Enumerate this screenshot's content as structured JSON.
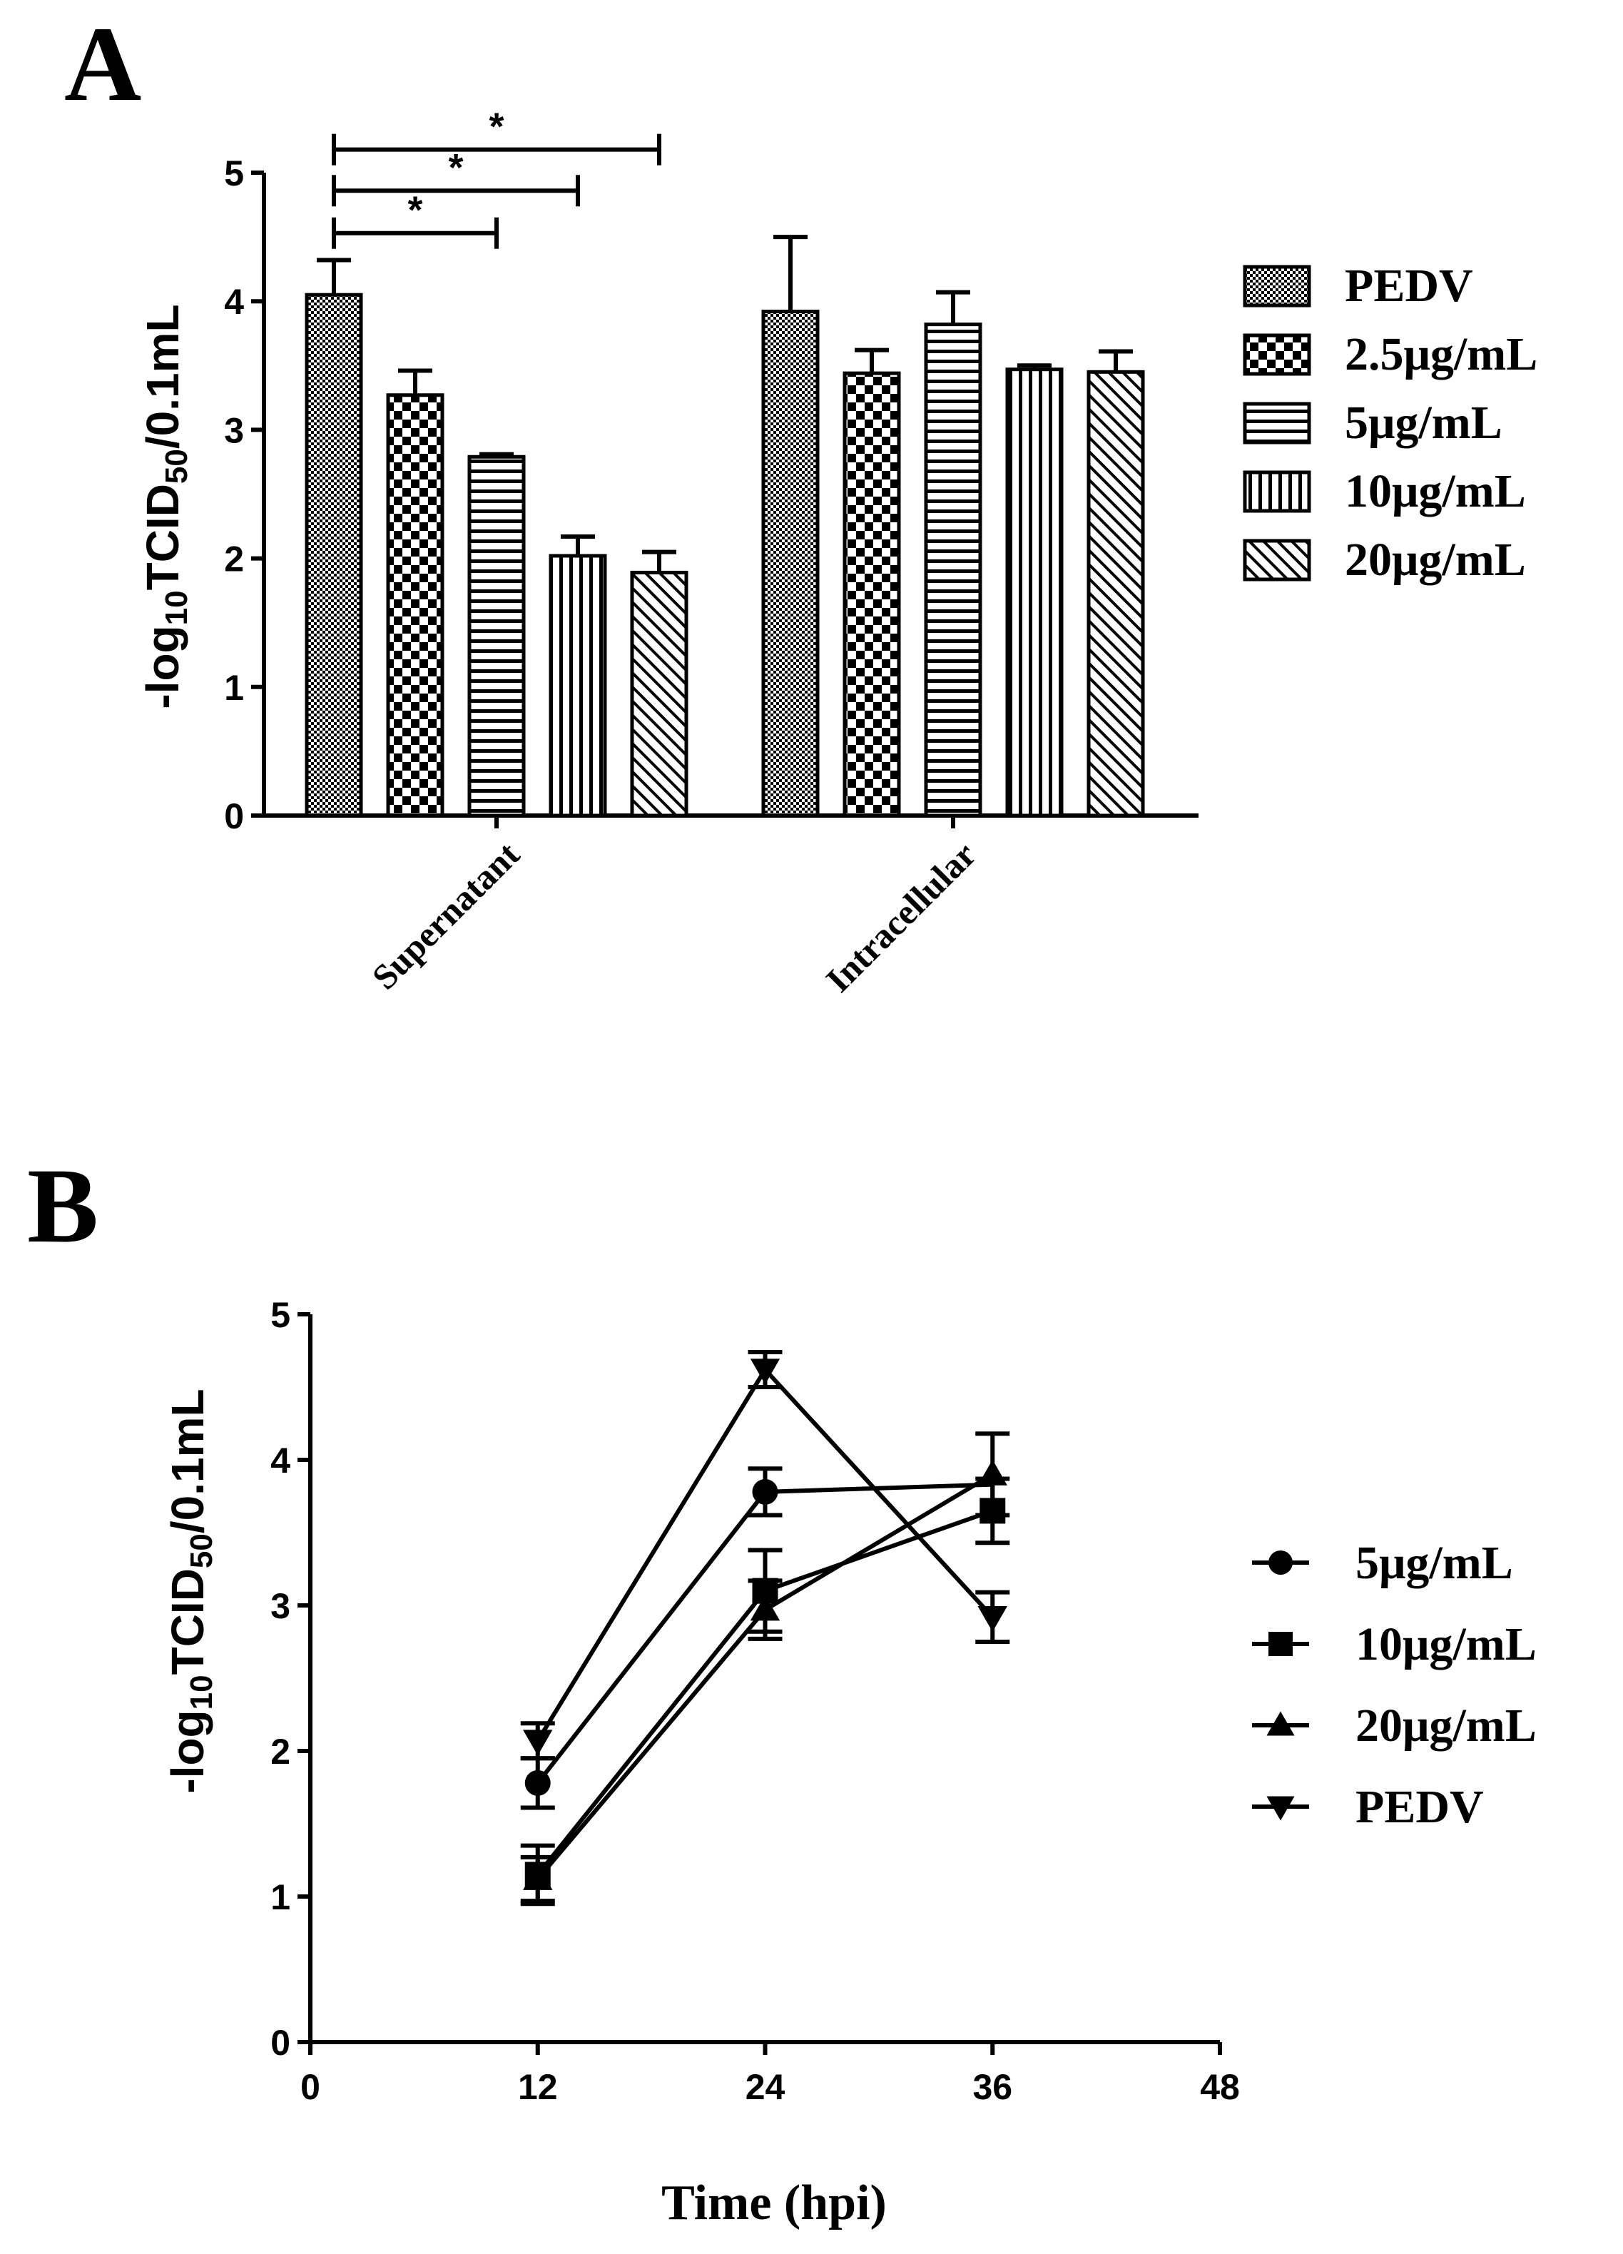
{
  "chart_data": [
    {
      "panel": "A",
      "type": "bar",
      "ylabel_main": "-log",
      "ylabel_sub1": "10",
      "ylabel_mid": "TCID",
      "ylabel_sub2": "50",
      "ylabel_end": "/0.1mL",
      "ylim": [
        0,
        5
      ],
      "yticks": [
        "0",
        "1",
        "2",
        "3",
        "4",
        "5"
      ],
      "categories": [
        "Supernatant",
        "Intracellular"
      ],
      "series": [
        {
          "name": "PEDV",
          "values": [
            4.05,
            3.92
          ],
          "errors": [
            0.27,
            0.58
          ]
        },
        {
          "name": "2.5μg/mL",
          "values": [
            3.27,
            3.44
          ],
          "errors": [
            0.19,
            0.18
          ]
        },
        {
          "name": "5μg/mL",
          "values": [
            2.79,
            3.82
          ],
          "errors": [
            0.02,
            0.25
          ]
        },
        {
          "name": "10μg/mL",
          "values": [
            2.02,
            3.47
          ],
          "errors": [
            0.15,
            0.03
          ]
        },
        {
          "name": "20μg/mL",
          "values": [
            1.89,
            3.45
          ],
          "errors": [
            0.16,
            0.16
          ]
        }
      ],
      "significance": [
        {
          "from": "PEDV",
          "to": "5μg/mL",
          "label": "*"
        },
        {
          "from": "PEDV",
          "to": "10μg/mL",
          "label": "*"
        },
        {
          "from": "PEDV",
          "to": "20μg/mL",
          "label": "*"
        }
      ]
    },
    {
      "panel": "B",
      "type": "line",
      "xlabel": "Time (hpi)",
      "ylabel_main": "-log",
      "ylabel_sub1": "10",
      "ylabel_mid": "TCID",
      "ylabel_sub2": "50",
      "ylabel_end": "/0.1mL",
      "xlim": [
        0,
        48
      ],
      "ylim": [
        0,
        5
      ],
      "xticks": [
        "0",
        "12",
        "24",
        "36",
        "48"
      ],
      "yticks": [
        "0",
        "1",
        "2",
        "3",
        "4",
        "5"
      ],
      "x": [
        12,
        24,
        36
      ],
      "series": [
        {
          "name": "5μg/mL",
          "marker": "circle",
          "values": [
            1.78,
            3.78
          ],
          "x": [
            12,
            24
          ],
          "errors": [
            0.17,
            0.16
          ]
        },
        {
          "name": "10μg/mL",
          "marker": "square",
          "values": [
            1.15,
            3.1,
            3.65
          ],
          "x": [
            12,
            24,
            36
          ],
          "errors": [
            0.2,
            0.28,
            0.22
          ]
        },
        {
          "name": "20μg/mL",
          "marker": "triangle-up",
          "values": [
            1.12,
            2.97,
            3.9
          ],
          "x": [
            12,
            24,
            36
          ],
          "errors": [
            0.15,
            0.2,
            0.28
          ]
        },
        {
          "name": "PEDV",
          "marker": "triangle-down",
          "values": [
            2.07,
            4.62,
            2.92
          ],
          "x": [
            12,
            24,
            36
          ],
          "errors": [
            0.12,
            0.12,
            0.17
          ]
        }
      ],
      "extra_segments": [
        {
          "series": "5μg/mL",
          "from_x": 24,
          "from_y": 3.78,
          "to_x": 36,
          "to_y": 3.83
        }
      ]
    }
  ],
  "panels": {
    "a_letter": "A",
    "b_letter": "B"
  }
}
